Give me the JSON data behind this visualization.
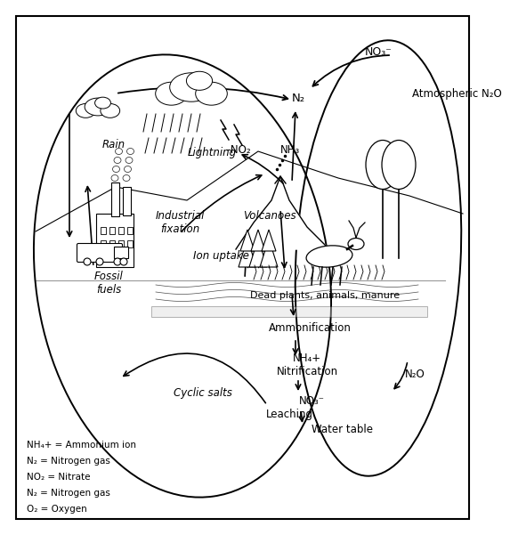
{
  "bg_color": "#ffffff",
  "text_color": "#000000",
  "labels": {
    "NO3_top": "NO₃⁻",
    "N2_top": "N₂",
    "atm_N2O": "Atmospheric N₂O",
    "rain": "Rain",
    "lightning": "Lightning",
    "NO2_label": "–NO₂",
    "NH3": "NH₃",
    "volcanoes": "Volcanoes",
    "industrial": "Industrial\nfixation",
    "fossil": "Fossil\nfuels",
    "ion_uptake": "Ion uptake",
    "dead_organic": "Dead plants, animals, manure",
    "ammonification": "Ammonification",
    "NH4_nitrification": "NH₄+\nNitrification",
    "NO3_bottom": "NO₃⁻",
    "leaching": "Leaching",
    "water_table": "Water table",
    "N2O_right": "N₂O",
    "cyclic_salts": "Cyclic salts"
  },
  "legend": [
    [
      "NH₄+ = Ammonium ion",
      8
    ],
    [
      "N₂ = Nitrogen gas",
      8
    ],
    [
      "NO₂ = Nitrate",
      8
    ],
    [
      "N₂ = Nitrogen gas",
      8
    ],
    [
      "O₂ = Oxygen",
      8
    ]
  ]
}
